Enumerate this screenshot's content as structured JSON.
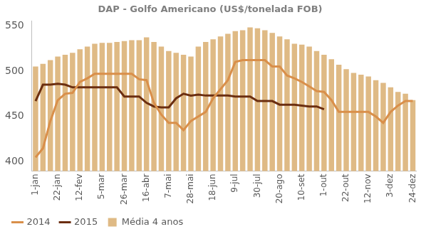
{
  "chart_data": {
    "type": "bar",
    "title": "DAP - Golfo Americano (US$/tonelada FOB)",
    "categories": [
      "1-jan",
      null,
      null,
      "22-jan",
      null,
      null,
      "12-fev",
      null,
      null,
      "5-mar",
      null,
      null,
      "26-mar",
      null,
      null,
      "16-abr",
      null,
      null,
      "7-mai",
      null,
      null,
      "28-mai",
      null,
      null,
      "18-jun",
      null,
      null,
      "9-jul",
      null,
      null,
      "30-jul",
      null,
      null,
      "20-ago",
      null,
      null,
      "10-set",
      null,
      null,
      "1-out",
      null,
      null,
      "22-out",
      null,
      null,
      "12-nov",
      null,
      null,
      "3-dez",
      null,
      null,
      "24-dez"
    ],
    "series": [
      {
        "name": "2014",
        "type": "line",
        "color": "#d98f4a",
        "values": [
          405,
          415,
          445,
          468,
          475,
          476,
          488,
          492,
          497,
          497,
          497,
          497,
          497,
          497,
          491,
          490,
          465,
          452,
          443,
          443,
          435,
          445,
          450,
          455,
          470,
          480,
          490,
          510,
          512,
          512,
          512,
          512,
          505,
          505,
          495,
          492,
          488,
          483,
          478,
          477,
          468,
          455,
          455,
          455,
          455,
          455,
          450,
          443,
          455,
          462,
          467,
          467
        ]
      },
      {
        "name": "2015",
        "type": "line",
        "color": "#6b2e10",
        "values": [
          467,
          485,
          485,
          486,
          485,
          482,
          482,
          482,
          482,
          482,
          482,
          482,
          472,
          472,
          472,
          465,
          461,
          460,
          460,
          470,
          475,
          473,
          474,
          473,
          473,
          473,
          473,
          472,
          472,
          472,
          467,
          467,
          467,
          463,
          463,
          463,
          462,
          461,
          461,
          458,
          null,
          null,
          null,
          null,
          null,
          null,
          null,
          null,
          null,
          null,
          null,
          null
        ]
      },
      {
        "name": "Média 4 anos",
        "type": "bar",
        "color": "#dfba85",
        "values": [
          505,
          508,
          512,
          516,
          518,
          520,
          524,
          527,
          530,
          531,
          531,
          532,
          533,
          534,
          534,
          537,
          532,
          527,
          522,
          520,
          518,
          516,
          527,
          532,
          535,
          538,
          541,
          544,
          545,
          548,
          547,
          545,
          542,
          538,
          535,
          530,
          529,
          527,
          522,
          518,
          513,
          507,
          502,
          498,
          496,
          494,
          490,
          487,
          482,
          477,
          475,
          468
        ]
      }
    ],
    "ylim": [
      390,
      555
    ],
    "yticks": [
      400,
      450,
      500,
      550
    ],
    "grid": false,
    "legend": "bottom"
  }
}
